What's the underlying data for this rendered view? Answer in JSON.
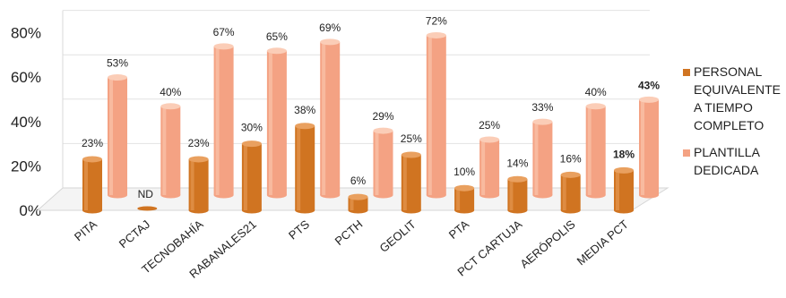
{
  "chart_data": {
    "type": "bar",
    "categories": [
      "PITA",
      "PCTAJ",
      "TECNOBAHÍA",
      "RABANALES21",
      "PTS",
      "PCTH",
      "GEOLIT",
      "PTA",
      "PCT CARTUJA",
      "AERÓPOLIS",
      "MEDIA PCT"
    ],
    "series": [
      {
        "name": "PERSONAL EQUIVALENTE A TIEMPO COMPLETO",
        "values": [
          23,
          0,
          23,
          30,
          38,
          6,
          25,
          10,
          14,
          16,
          18
        ],
        "labels": [
          "23%",
          "ND",
          "23%",
          "30%",
          "38%",
          "6%",
          "25%",
          "10%",
          "14%",
          "16%",
          "18%"
        ],
        "color": "#d07421"
      },
      {
        "name": "PLANTILLA DEDICADA",
        "values": [
          53,
          40,
          67,
          65,
          69,
          29,
          72,
          25,
          33,
          40,
          43
        ],
        "labels": [
          "53%",
          "40%",
          "67%",
          "65%",
          "69%",
          "29%",
          "72%",
          "25%",
          "33%",
          "40%",
          "43%"
        ],
        "color": "#f4a283"
      }
    ],
    "bold_categories": [
      "MEDIA PCT"
    ],
    "y_ticks": [
      "0%",
      "20%",
      "40%",
      "60%",
      "80%"
    ],
    "ylim": [
      0,
      80
    ],
    "grid": true,
    "legend_position": "right",
    "title": "",
    "xlabel": "",
    "ylabel": ""
  }
}
